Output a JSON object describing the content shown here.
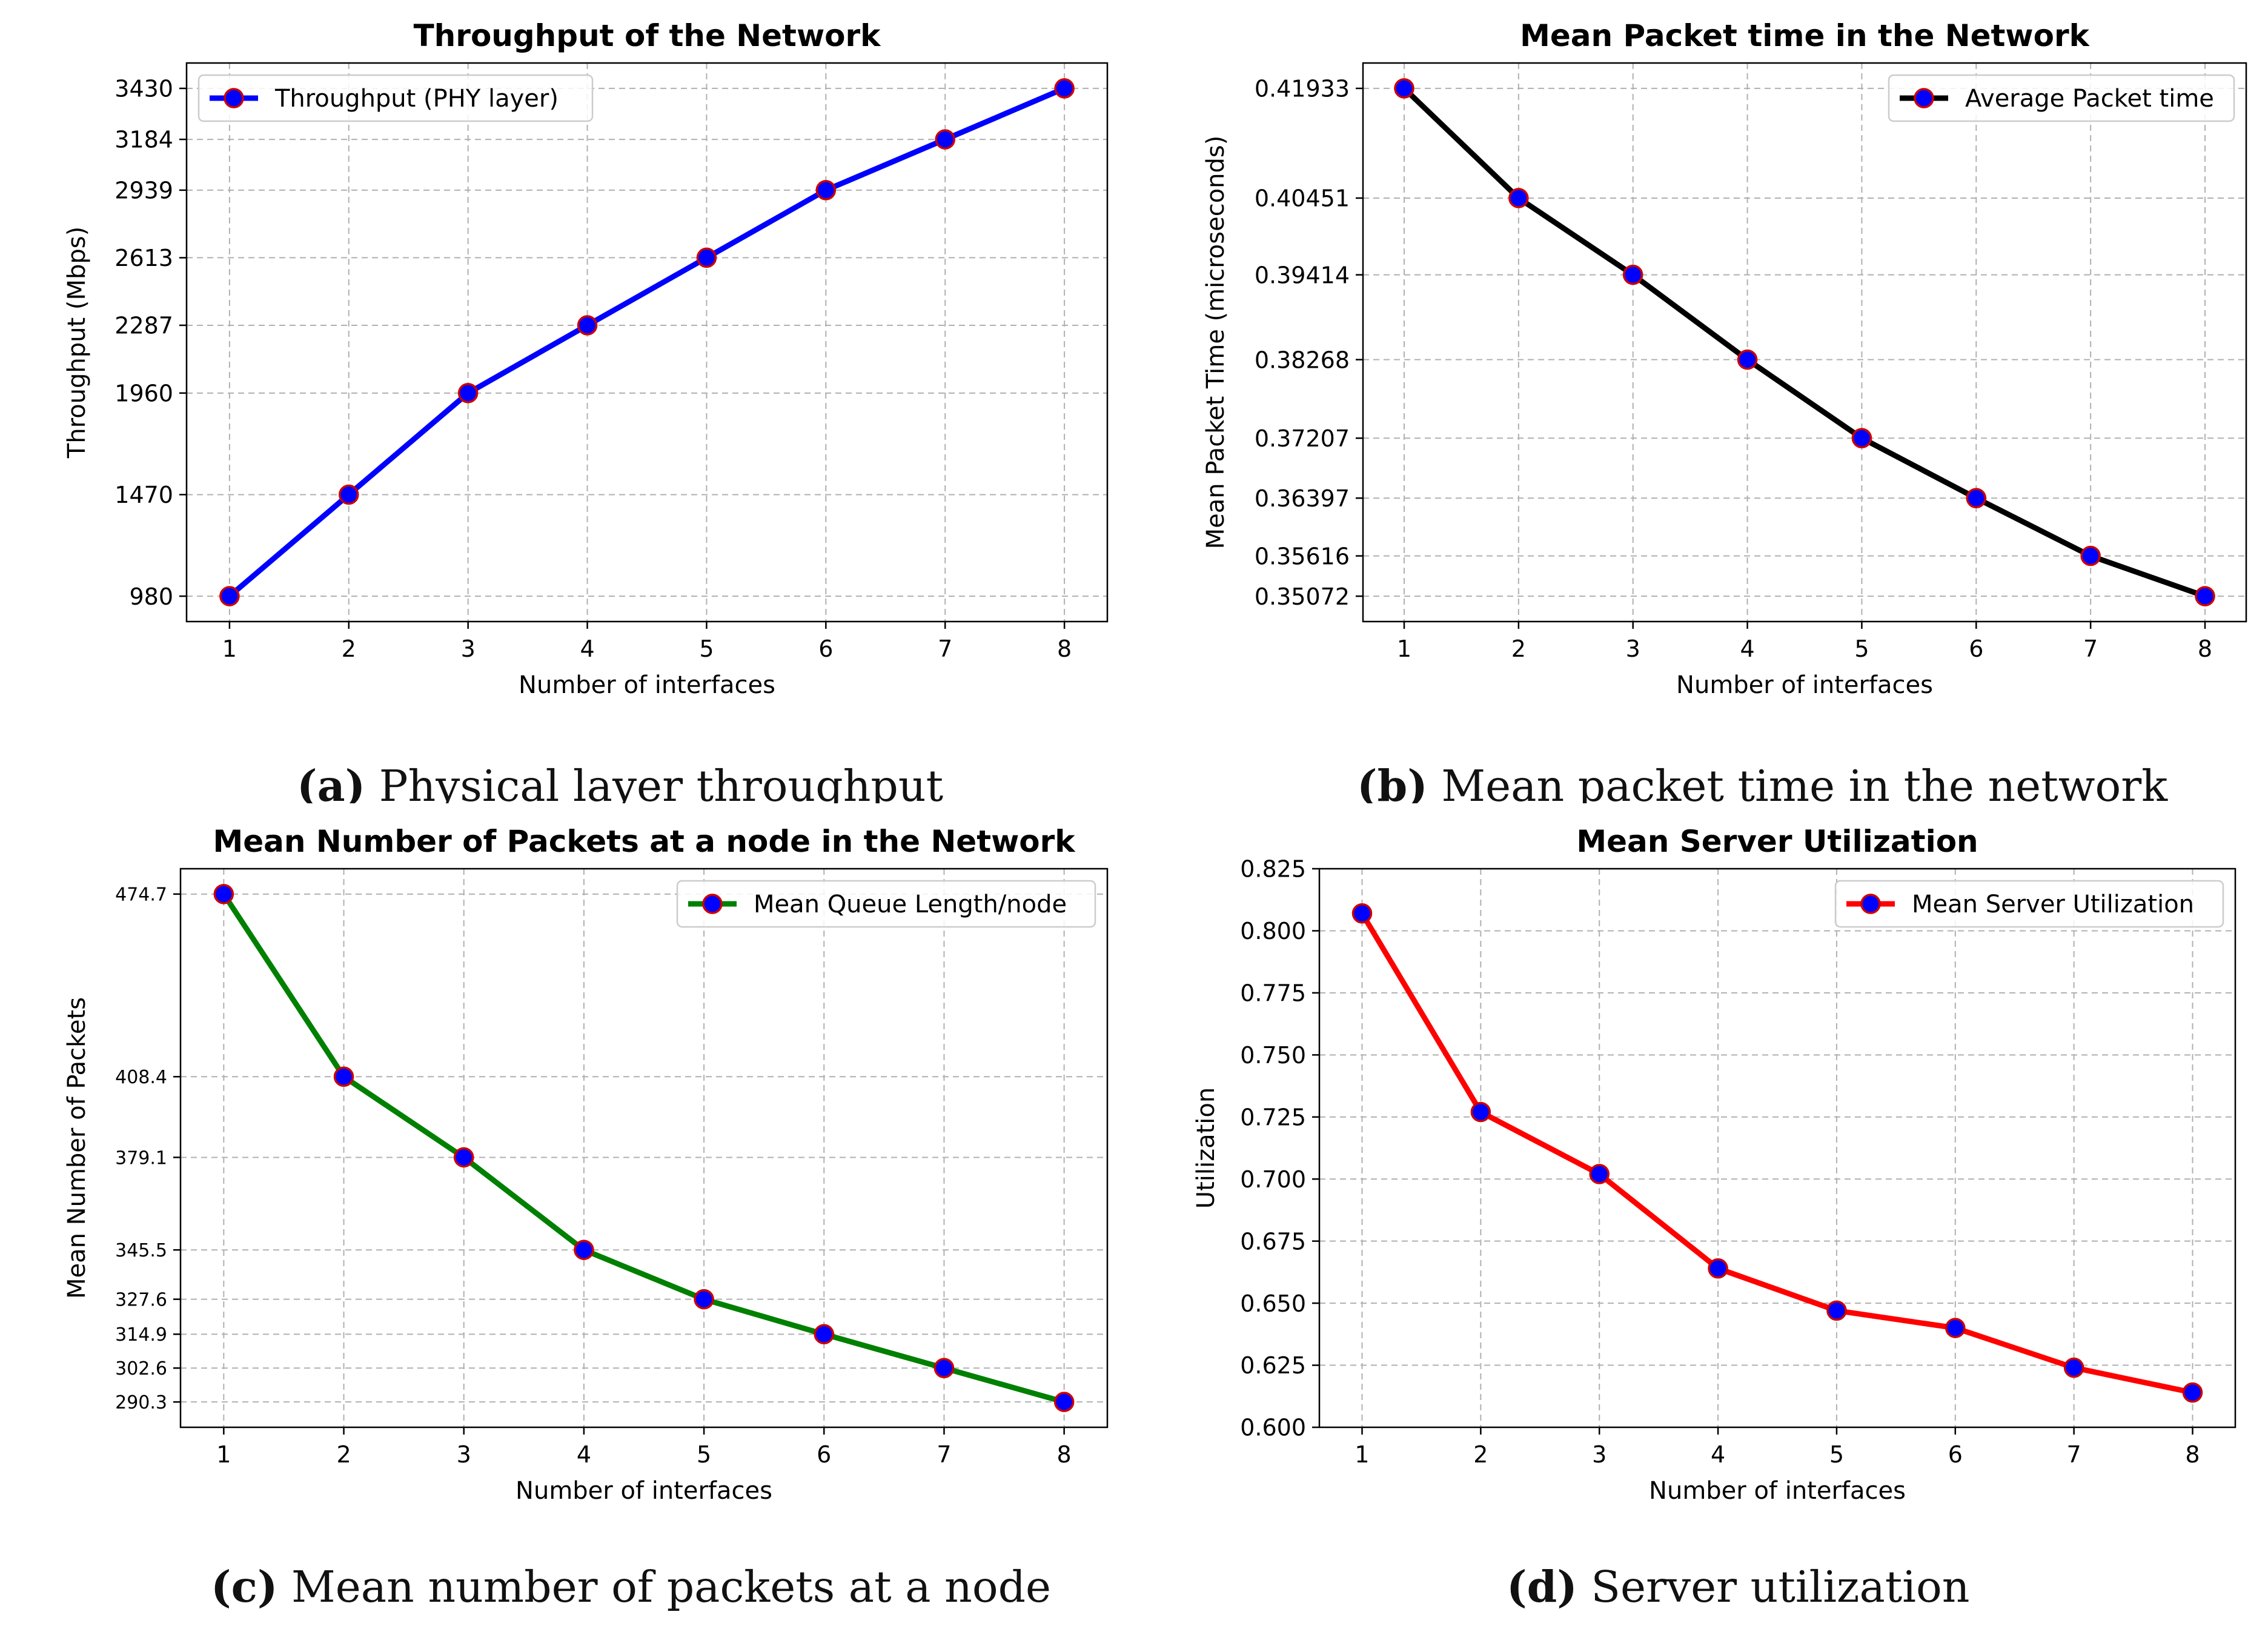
{
  "panels": [
    {
      "caption": {
        "tag": "(a)",
        "text": "Physical layer throughput"
      },
      "chart_data": {
        "type": "line",
        "title": "Throughput of the Network",
        "xlabel": "Number of interfaces",
        "ylabel": "Throughput (Mbps)",
        "x": [
          1,
          2,
          3,
          4,
          5,
          6,
          7,
          8
        ],
        "xticks": [
          "1",
          "2",
          "3",
          "4",
          "5",
          "6",
          "7",
          "8"
        ],
        "xlim": [
          0.64,
          8.36
        ],
        "yticks": [
          "980",
          "1470",
          "1960",
          "2287",
          "2613",
          "2939",
          "3184",
          "3430"
        ],
        "ylim": [
          857.5,
          3552.5
        ],
        "grid": true,
        "legend_position": "upper-left",
        "series": [
          {
            "name": "Throughput (PHY layer)",
            "color": "#0000ff",
            "marker_face": "#0000ff",
            "marker_edge": "#cc0000",
            "values": [
              980,
              1470,
              1960,
              2287,
              2613,
              2939,
              3184,
              3430
            ]
          }
        ]
      }
    },
    {
      "caption": {
        "tag": "(b)",
        "text": "Mean packet time in the network"
      },
      "chart_data": {
        "type": "line",
        "title": "Mean Packet time in the Network",
        "xlabel": "Number of interfaces",
        "ylabel": "Mean Packet Time (microseconds)",
        "x": [
          1,
          2,
          3,
          4,
          5,
          6,
          7,
          8
        ],
        "xticks": [
          "1",
          "2",
          "3",
          "4",
          "5",
          "6",
          "7",
          "8"
        ],
        "xlim": [
          0.64,
          8.36
        ],
        "yticks": [
          "0.35072",
          "0.35616",
          "0.36397",
          "0.37207",
          "0.38268",
          "0.39414",
          "0.40451",
          "0.41933"
        ],
        "ylim": [
          0.34729,
          0.42276
        ],
        "grid": true,
        "legend_position": "upper-right",
        "series": [
          {
            "name": "Average Packet time",
            "color": "#000000",
            "marker_face": "#0000ff",
            "marker_edge": "#cc0000",
            "values": [
              0.41933,
              0.40451,
              0.39414,
              0.38268,
              0.37207,
              0.36397,
              0.35616,
              0.35072
            ]
          }
        ]
      }
    },
    {
      "caption": {
        "tag": "(c)",
        "text": "Mean number of packets at a node"
      },
      "chart_data": {
        "type": "line",
        "title": "Mean Number of Packets at a node in the Network",
        "xlabel": "Number of interfaces",
        "ylabel": "Mean Number of Packets",
        "x": [
          1,
          2,
          3,
          4,
          5,
          6,
          7,
          8
        ],
        "xticks": [
          "1",
          "2",
          "3",
          "4",
          "5",
          "6",
          "7",
          "8"
        ],
        "xlim": [
          0.64,
          8.36
        ],
        "yticks": [
          "290.3",
          "302.6",
          "314.9",
          "327.6",
          "345.5",
          "379.1",
          "408.4",
          "474.7"
        ],
        "ylim": [
          281.1,
          483.9
        ],
        "grid": true,
        "legend_position": "upper-right",
        "series": [
          {
            "name": "Mean Queue Length/node",
            "color": "#008000",
            "marker_face": "#0000ff",
            "marker_edge": "#cc0000",
            "values": [
              474.7,
              408.4,
              379.1,
              345.5,
              327.6,
              314.9,
              302.6,
              290.3
            ]
          }
        ]
      }
    },
    {
      "caption": {
        "tag": "(d)",
        "text": "Server utilization"
      },
      "chart_data": {
        "type": "line",
        "title": "Mean Server Utilization",
        "xlabel": "Number of interfaces",
        "ylabel": "Utilization",
        "x": [
          1,
          2,
          3,
          4,
          5,
          6,
          7,
          8
        ],
        "xticks": [
          "1",
          "2",
          "3",
          "4",
          "5",
          "6",
          "7",
          "8"
        ],
        "xlim": [
          0.64,
          8.36
        ],
        "yticks": [
          "0.600",
          "0.625",
          "0.650",
          "0.675",
          "0.700",
          "0.725",
          "0.750",
          "0.775",
          "0.800",
          "0.825"
        ],
        "ylim": [
          0.6,
          0.825
        ],
        "grid": true,
        "legend_position": "upper-right",
        "series": [
          {
            "name": "Mean Server Utilization",
            "color": "#ff0000",
            "marker_face": "#0000ff",
            "marker_edge": "#cc0000",
            "values": [
              0.807,
              0.727,
              0.702,
              0.664,
              0.647,
              0.64,
              0.624,
              0.614
            ]
          }
        ]
      }
    }
  ]
}
